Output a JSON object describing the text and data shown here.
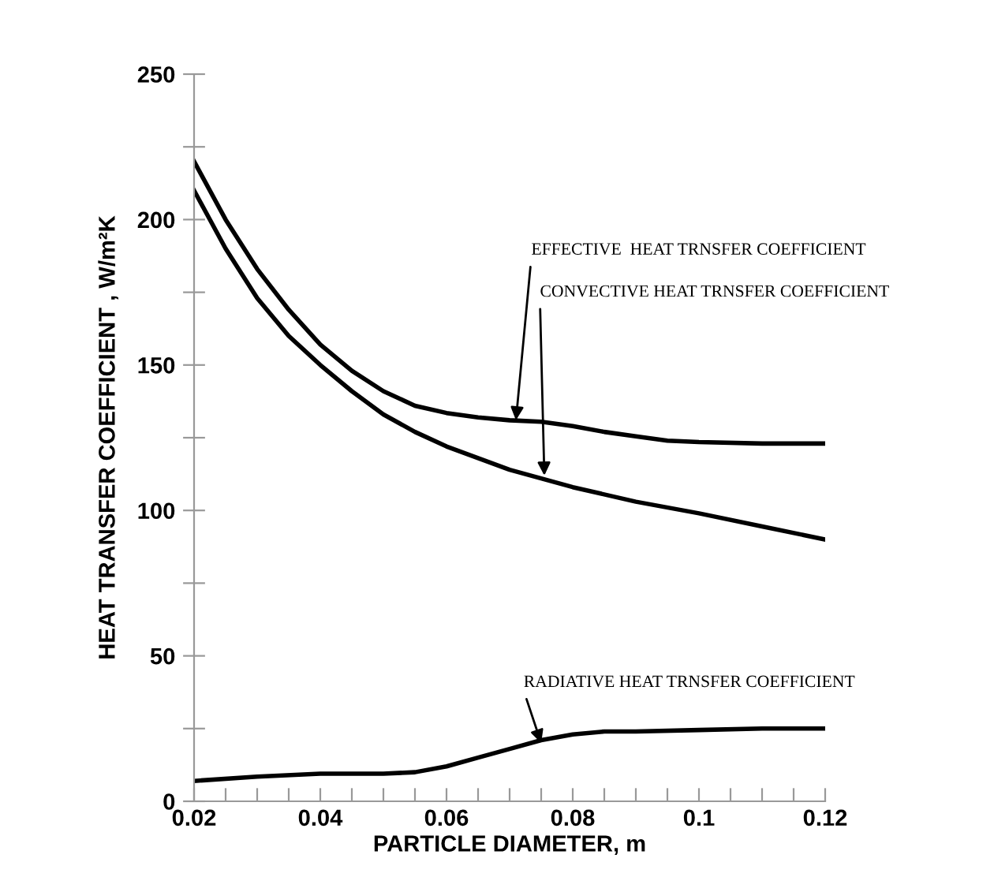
{
  "chart_data": {
    "type": "line",
    "xlabel": "PARTICLE DIAMETER, m",
    "ylabel": "HEAT TRANSFER COEFFICIENT , W/m²K",
    "xlim": [
      0.02,
      0.12
    ],
    "ylim": [
      0,
      250
    ],
    "xticks": [
      0.02,
      {
        "value": 0.025,
        "label": null
      },
      0.04,
      {
        "value": 0.03,
        "label": null
      },
      {
        "value": 0.035,
        "label": null
      },
      {
        "value": 0.045,
        "label": null
      },
      0.06,
      {
        "value": 0.05,
        "label": null
      },
      {
        "value": 0.055,
        "label": null
      },
      {
        "value": 0.065,
        "label": null
      },
      0.08,
      {
        "value": 0.07,
        "label": null
      },
      {
        "value": 0.075,
        "label": null
      },
      {
        "value": 0.085,
        "label": null
      },
      0.1,
      {
        "value": 0.09,
        "label": null
      },
      {
        "value": 0.095,
        "label": null
      },
      {
        "value": 0.105,
        "label": null
      },
      0.12,
      {
        "value": 0.11,
        "label": null
      },
      {
        "value": 0.115,
        "label": null
      }
    ],
    "yticks": [
      0,
      {
        "value": 25,
        "label": null
      },
      50,
      {
        "value": 75,
        "label": null
      },
      100,
      {
        "value": 125,
        "label": null
      },
      150,
      {
        "value": 175,
        "label": null
      },
      200,
      {
        "value": 225,
        "label": null
      },
      250
    ],
    "grid": false,
    "legend": false,
    "marker": "none",
    "line_style": "solid",
    "series": [
      {
        "color": "#000000",
        "x": [
          0.02,
          0.025,
          0.03,
          0.035,
          0.04,
          0.045,
          0.05,
          0.055,
          0.06,
          0.065,
          0.07,
          0.075,
          0.08,
          0.085,
          0.09,
          0.095,
          0.1,
          0.11,
          0.12
        ],
        "values": [
          220,
          200,
          183,
          169,
          157,
          148,
          141,
          136,
          133.5,
          132,
          131,
          130.5,
          129,
          127,
          125.5,
          124,
          123.5,
          123,
          123
        ]
      },
      {
        "color": "#000000",
        "x": [
          0.02,
          0.025,
          0.03,
          0.035,
          0.04,
          0.045,
          0.05,
          0.055,
          0.06,
          0.065,
          0.07,
          0.075,
          0.08,
          0.09,
          0.1,
          0.11,
          0.12
        ],
        "values": [
          210,
          190,
          173,
          160,
          150,
          141,
          133,
          127,
          122,
          118,
          114,
          111,
          108,
          103,
          99,
          94.5,
          90
        ]
      },
      {
        "color": "#000000",
        "x": [
          0.02,
          0.03,
          0.04,
          0.05,
          0.055,
          0.06,
          0.065,
          0.07,
          0.075,
          0.08,
          0.085,
          0.09,
          0.1,
          0.11,
          0.12
        ],
        "values": [
          7,
          8.5,
          9.5,
          9.5,
          10,
          12,
          15,
          18,
          21,
          23,
          24,
          24,
          24.5,
          25,
          25
        ]
      }
    ],
    "annotations": [
      {
        "text": "EFFECTIVE  HEAT TRNSFER COEFFICIENT",
        "x": 0.071,
        "y": 131
      },
      {
        "text": "CONVECTIVE HEAT TRNSFER COEFFICIENT",
        "x": 0.0755,
        "y": 112
      },
      {
        "text": "RADIATIVE HEAT TRNSFER COEFFICIENT",
        "x": 0.075,
        "y": 20
      }
    ]
  }
}
